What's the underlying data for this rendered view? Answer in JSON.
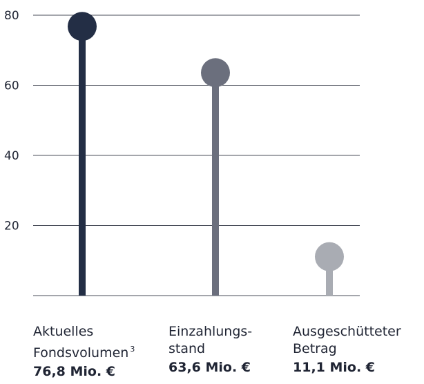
{
  "chart_data": {
    "type": "lollipop",
    "title": "",
    "xlabel": "",
    "ylabel": "",
    "ylim": [
      0,
      80
    ],
    "yticks": [
      20,
      40,
      60,
      80
    ],
    "grid": true,
    "categories": [
      "Aktuelles Fondsvolumen",
      "Einzahlungsstand",
      "Ausgeschütteter Betrag"
    ],
    "values": [
      76.8,
      63.6,
      11.1
    ],
    "colors": [
      "#232e45",
      "#6b6f7d",
      "#a9acb3"
    ],
    "category_labels": [
      {
        "line1": "Aktuelles",
        "line2": "Fondsvolumen",
        "sup": "3",
        "value_label": "76,8 Mio. €"
      },
      {
        "line1": "Einzahlungs-",
        "line2": "stand",
        "sup": "",
        "value_label": "63,6 Mio. €"
      },
      {
        "line1": "Ausgeschütteter",
        "line2": "Betrag",
        "sup": "",
        "value_label": "11,1 Mio. €"
      }
    ]
  }
}
